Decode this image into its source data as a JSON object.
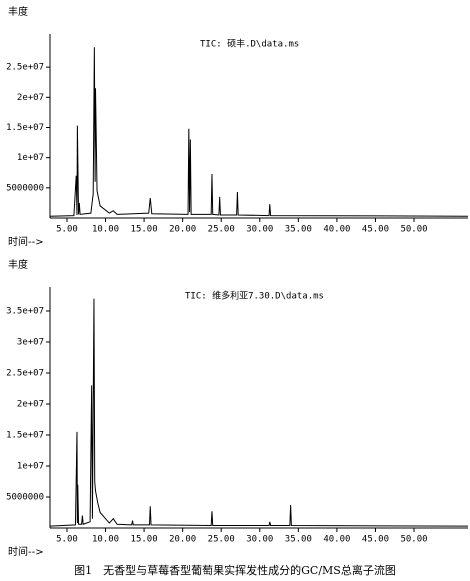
{
  "chart_data": [
    {
      "type": "line",
      "y_label": "丰度",
      "x_label": "时间-->",
      "annotation": "TIC: 硕丰.D\\data.ms",
      "color": "#000000",
      "xlim": [
        2.8,
        57
      ],
      "ylim": [
        0,
        29500000
      ],
      "xticks": [
        {
          "value": 5,
          "label": "5.00"
        },
        {
          "value": 10,
          "label": "10.00"
        },
        {
          "value": 15,
          "label": "15.00"
        },
        {
          "value": 20,
          "label": "20.00"
        },
        {
          "value": 25,
          "label": "25.00"
        },
        {
          "value": 30,
          "label": "30.00"
        },
        {
          "value": 35,
          "label": "35.00"
        },
        {
          "value": 40,
          "label": "40.00"
        },
        {
          "value": 45,
          "label": "45.00"
        },
        {
          "value": 50,
          "label": "50.00"
        }
      ],
      "yticks": [
        5000000,
        {
          "value": 10000000,
          "label": "1e+07"
        },
        {
          "value": 15000000,
          "label": "1.5e+07"
        },
        {
          "value": 20000000,
          "label": "2e+07"
        },
        {
          "value": 25000000,
          "label": "2.5e+07"
        }
      ],
      "x": [
        2.8,
        5.9,
        6.2,
        6.3,
        6.35,
        6.5,
        6.6,
        6.7,
        8.1,
        8.4,
        8.55,
        8.65,
        8.7,
        8.9,
        9.3,
        10.5,
        11.0,
        11.5,
        15.6,
        15.8,
        16.0,
        20.7,
        20.8,
        20.9,
        21.0,
        21.1,
        23.7,
        23.8,
        23.9,
        24.7,
        24.8,
        24.9,
        27.0,
        27.1,
        27.2,
        31.2,
        31.3,
        31.4,
        57
      ],
      "values": [
        300000,
        400000,
        7000000,
        500000,
        15300000,
        600000,
        2500000,
        600000,
        800000,
        4000000,
        28300000,
        6000000,
        21500000,
        4500000,
        2000000,
        800000,
        1200000,
        600000,
        800000,
        3300000,
        700000,
        600000,
        14800000,
        1000000,
        13000000,
        600000,
        600000,
        7300000,
        600000,
        500000,
        3500000,
        500000,
        500000,
        4300000,
        500000,
        400000,
        2300000,
        400000,
        300000
      ]
    },
    {
      "type": "line",
      "y_label": "丰度",
      "x_label": "时间-->",
      "annotation": "TIC: 维多利亚7.30.D\\data.ms",
      "color": "#000000",
      "xlim": [
        2.8,
        57
      ],
      "ylim": [
        0,
        37900000
      ],
      "xticks": [
        {
          "value": 5,
          "label": "5.00"
        },
        {
          "value": 10,
          "label": "10.00"
        },
        {
          "value": 15,
          "label": "15.00"
        },
        {
          "value": 20,
          "label": "20.00"
        },
        {
          "value": 25,
          "label": "25.00"
        },
        {
          "value": 30,
          "label": "30.00"
        },
        {
          "value": 35,
          "label": "35.00"
        },
        {
          "value": 40,
          "label": "40.00"
        },
        {
          "value": 45,
          "label": "45.00"
        },
        {
          "value": 50,
          "label": "50.00"
        }
      ],
      "yticks": [
        5000000,
        {
          "value": 10000000,
          "label": "1e+07"
        },
        {
          "value": 15000000,
          "label": "1.5e+07"
        },
        {
          "value": 20000000,
          "label": "2e+07"
        },
        {
          "value": 25000000,
          "label": "2.5e+07"
        },
        {
          "value": 30000000,
          "label": "3e+07"
        },
        {
          "value": 35000000,
          "label": "3.5e+07"
        }
      ],
      "x": [
        2.8,
        6.1,
        6.3,
        6.35,
        6.4,
        6.5,
        6.9,
        7.0,
        7.1,
        8.0,
        8.2,
        8.3,
        8.5,
        8.6,
        8.7,
        9.0,
        9.3,
        10.5,
        11.0,
        11.5,
        13.4,
        13.5,
        13.6,
        15.7,
        15.8,
        15.9,
        23.7,
        23.8,
        23.9,
        31.2,
        31.3,
        31.4,
        33.9,
        34.0,
        34.1,
        57
      ],
      "values": [
        300000,
        500000,
        15500000,
        800000,
        7000000,
        600000,
        600000,
        2000000,
        600000,
        1000000,
        23000000,
        1500000,
        37000000,
        7500000,
        6000000,
        4000000,
        2500000,
        800000,
        1500000,
        600000,
        500000,
        1200000,
        500000,
        500000,
        3500000,
        500000,
        400000,
        2700000,
        400000,
        400000,
        1000000,
        400000,
        400000,
        3700000,
        400000,
        300000
      ]
    }
  ],
  "caption": "图1　无香型与草莓香型葡萄果实挥发性成分的GC/MS总离子流图"
}
